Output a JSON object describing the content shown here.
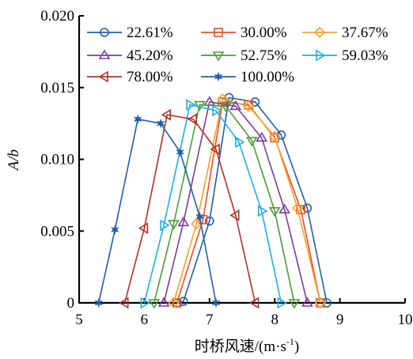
{
  "chart_data": {
    "type": "line",
    "xlabel": "时桥风速/(m·s",
    "xlabel_sup": "-1",
    "xlabel_close": ")",
    "ylabel": "A/b",
    "xlim": [
      5,
      10
    ],
    "ylim": [
      0,
      0.02
    ],
    "xticks": [
      5,
      6,
      7,
      8,
      9,
      10
    ],
    "yticks": [
      0,
      0.005,
      0.01,
      0.015,
      0.02
    ],
    "xtick_labels": [
      "5",
      "6",
      "7",
      "8",
      "9",
      "10"
    ],
    "ytick_labels": [
      "0",
      "0.005",
      "0.010",
      "0.015",
      "0.020"
    ],
    "grid": false,
    "legend_position": "top",
    "series": [
      {
        "name": "22.61%",
        "color": "#1f5fa8",
        "marker": "circle",
        "x": [
          6.5,
          6.6,
          7.0,
          7.3,
          7.7,
          8.1,
          8.5,
          8.8
        ],
        "y": [
          0,
          0.0001,
          0.0057,
          0.0143,
          0.014,
          0.0117,
          0.0066,
          0
        ]
      },
      {
        "name": "30.00%",
        "color": "#e8502a",
        "marker": "square",
        "x": [
          6.5,
          6.9,
          7.2,
          7.6,
          8.0,
          8.4,
          8.7
        ],
        "y": [
          0,
          0.0058,
          0.014,
          0.0138,
          0.0115,
          0.0065,
          0
        ]
      },
      {
        "name": "37.67%",
        "color": "#f5a030",
        "marker": "diamond",
        "x": [
          6.45,
          6.8,
          7.2,
          7.6,
          8.0,
          8.35,
          8.7
        ],
        "y": [
          0,
          0.0055,
          0.0142,
          0.0137,
          0.0116,
          0.0066,
          0
        ]
      },
      {
        "name": "45.20%",
        "color": "#7a3d9e",
        "marker": "triangle-up",
        "x": [
          6.3,
          6.6,
          7.0,
          7.4,
          7.8,
          8.15,
          8.5
        ],
        "y": [
          0,
          0.0056,
          0.014,
          0.0137,
          0.0115,
          0.0065,
          0
        ]
      },
      {
        "name": "52.75%",
        "color": "#4e9a3c",
        "marker": "triangle-down",
        "x": [
          6.15,
          6.45,
          6.85,
          7.25,
          7.65,
          8.0,
          8.3
        ],
        "y": [
          0,
          0.0055,
          0.0138,
          0.0137,
          0.0113,
          0.0064,
          0
        ]
      },
      {
        "name": "59.03%",
        "color": "#1faee8",
        "marker": "triangle-right",
        "x": [
          6.0,
          6.3,
          6.7,
          7.1,
          7.45,
          7.8,
          8.1
        ],
        "y": [
          0,
          0.0054,
          0.0138,
          0.0134,
          0.0112,
          0.0064,
          0
        ]
      },
      {
        "name": "78.00%",
        "color": "#b0302a",
        "marker": "triangle-left",
        "x": [
          5.7,
          6.0,
          6.35,
          6.75,
          7.1,
          7.4,
          7.7
        ],
        "y": [
          0,
          0.0052,
          0.0131,
          0.0128,
          0.0107,
          0.0061,
          0
        ]
      },
      {
        "name": "100.00%",
        "color": "#1f5fa8",
        "marker": "star",
        "x": [
          5.3,
          5.55,
          5.9,
          6.25,
          6.55,
          6.85,
          7.1
        ],
        "y": [
          0,
          0.0051,
          0.0128,
          0.0125,
          0.0105,
          0.006,
          0
        ]
      }
    ]
  }
}
